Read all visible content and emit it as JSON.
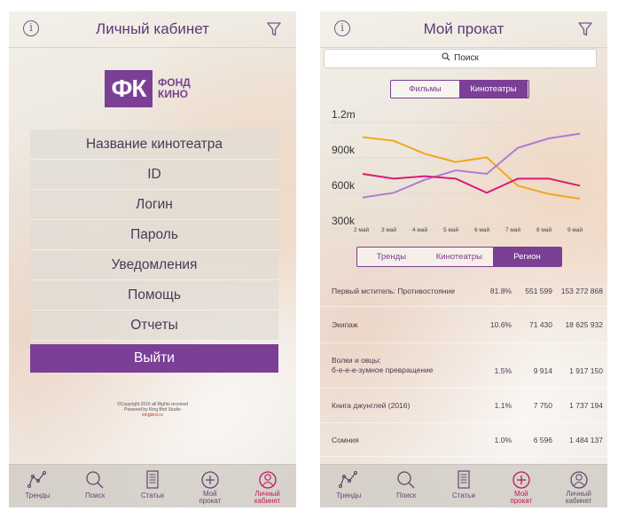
{
  "left": {
    "title": "Личный кабинет",
    "logo": {
      "mark": "ФК",
      "line1": "ФОНД",
      "line2": "КИНО"
    },
    "menu": [
      "Название кинотеатра",
      "ID",
      "Логин",
      "Пароль",
      "Уведомления",
      "Помощь",
      "Отчеты"
    ],
    "logout": "Выйти",
    "copyright": {
      "line1": "©Copyright 2016 all Rights received",
      "line2": "Powered by King Bird Studio",
      "link": "kingbird.ru"
    }
  },
  "right": {
    "title": "Мой прокат",
    "search_placeholder": "Поиск",
    "tabs_top": [
      "Фильмы",
      "Кинотеатры"
    ],
    "tabs_top_selected": 1,
    "tabs_bottom": [
      "Тренды",
      "Кинотеатры",
      "Регион"
    ],
    "tabs_bottom_selected": 2,
    "rows": [
      {
        "name": [
          "Первый мститель: Противостояние"
        ],
        "pct": "81.8%",
        "count": "551 599",
        "sum": "153 272 868"
      },
      {
        "name": [
          "Экипаж"
        ],
        "pct": "10.6%",
        "count": "71 430",
        "sum": "18 625 932"
      },
      {
        "name": [
          "Волки и овцы:",
          "б-е-е-е-зумное превращение"
        ],
        "pct": "1.5%",
        "count": "9 914",
        "sum": "1 917 150"
      },
      {
        "name": [
          "Книга джунглей (2016)"
        ],
        "pct": "1.1%",
        "count": "7 750",
        "sum": "1 737 194"
      },
      {
        "name": [
          "Сомния"
        ],
        "pct": "1.0%",
        "count": "6 596",
        "sum": "1 484 137"
      }
    ]
  },
  "nav": {
    "items": [
      {
        "label": [
          "Тренды"
        ],
        "icon": "trends-icon"
      },
      {
        "label": [
          "Поиск"
        ],
        "icon": "search-icon"
      },
      {
        "label": [
          "Статьи"
        ],
        "icon": "articles-icon"
      },
      {
        "label": [
          "Мой",
          "прокат"
        ],
        "icon": "add-circle-icon"
      },
      {
        "label": [
          "Личный",
          "кабинет"
        ],
        "icon": "profile-icon"
      }
    ],
    "active_left": 4,
    "active_right": 3,
    "active_color": "#c2185b",
    "icon_color": "#5e4a6c"
  },
  "chart_data": {
    "type": "line",
    "x": [
      "2 май",
      "3 май",
      "4 май",
      "5 май",
      "6 май",
      "7 май",
      "8 май",
      "9 май"
    ],
    "yticks": [
      "1.2m",
      "900k",
      "600k",
      "300k"
    ],
    "ylim": [
      300000,
      1200000
    ],
    "series": [
      {
        "color": "#f0a81c",
        "values": [
          1000000,
          970000,
          860000,
          790000,
          830000,
          590000,
          520000,
          480000
        ]
      },
      {
        "color": "#b07ad6",
        "values": [
          490000,
          530000,
          640000,
          720000,
          690000,
          910000,
          990000,
          1030000
        ]
      },
      {
        "color": "#d81b7a",
        "values": [
          690000,
          650000,
          670000,
          650000,
          530000,
          650000,
          650000,
          590000
        ]
      }
    ]
  },
  "accent": "#7b3f95"
}
